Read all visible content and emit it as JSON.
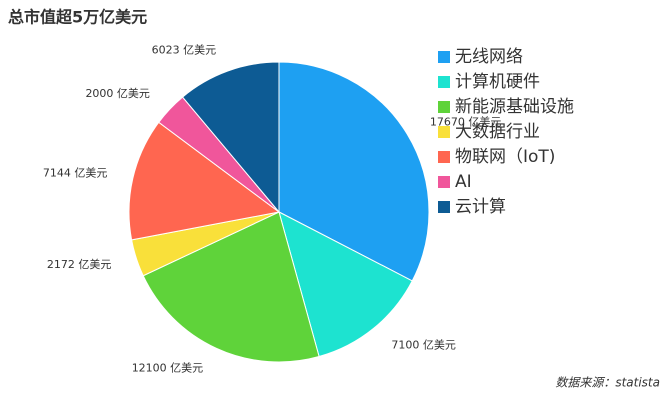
{
  "chart_data": {
    "type": "pie",
    "title": "总市值超5万亿美元",
    "categories": [
      "无线网络",
      "计算机硬件",
      "新能源基础设施",
      "大数据行业",
      "物联网（IoT)",
      "AI",
      "云计算"
    ],
    "values": [
      17670,
      7100,
      12100,
      2172,
      7144,
      2000,
      6023
    ],
    "value_labels": [
      "17670 亿美元",
      "7100 亿美元",
      "12100 亿美元",
      "2172 亿美元",
      "7144 亿美元",
      "2000 亿美元",
      "6023 亿美元"
    ],
    "colors": [
      "#1ea0f2",
      "#1de3d0",
      "#5fd33a",
      "#f9e03a",
      "#ff6650",
      "#f0569b",
      "#0d5b94"
    ],
    "source": "数据来源：statista"
  }
}
